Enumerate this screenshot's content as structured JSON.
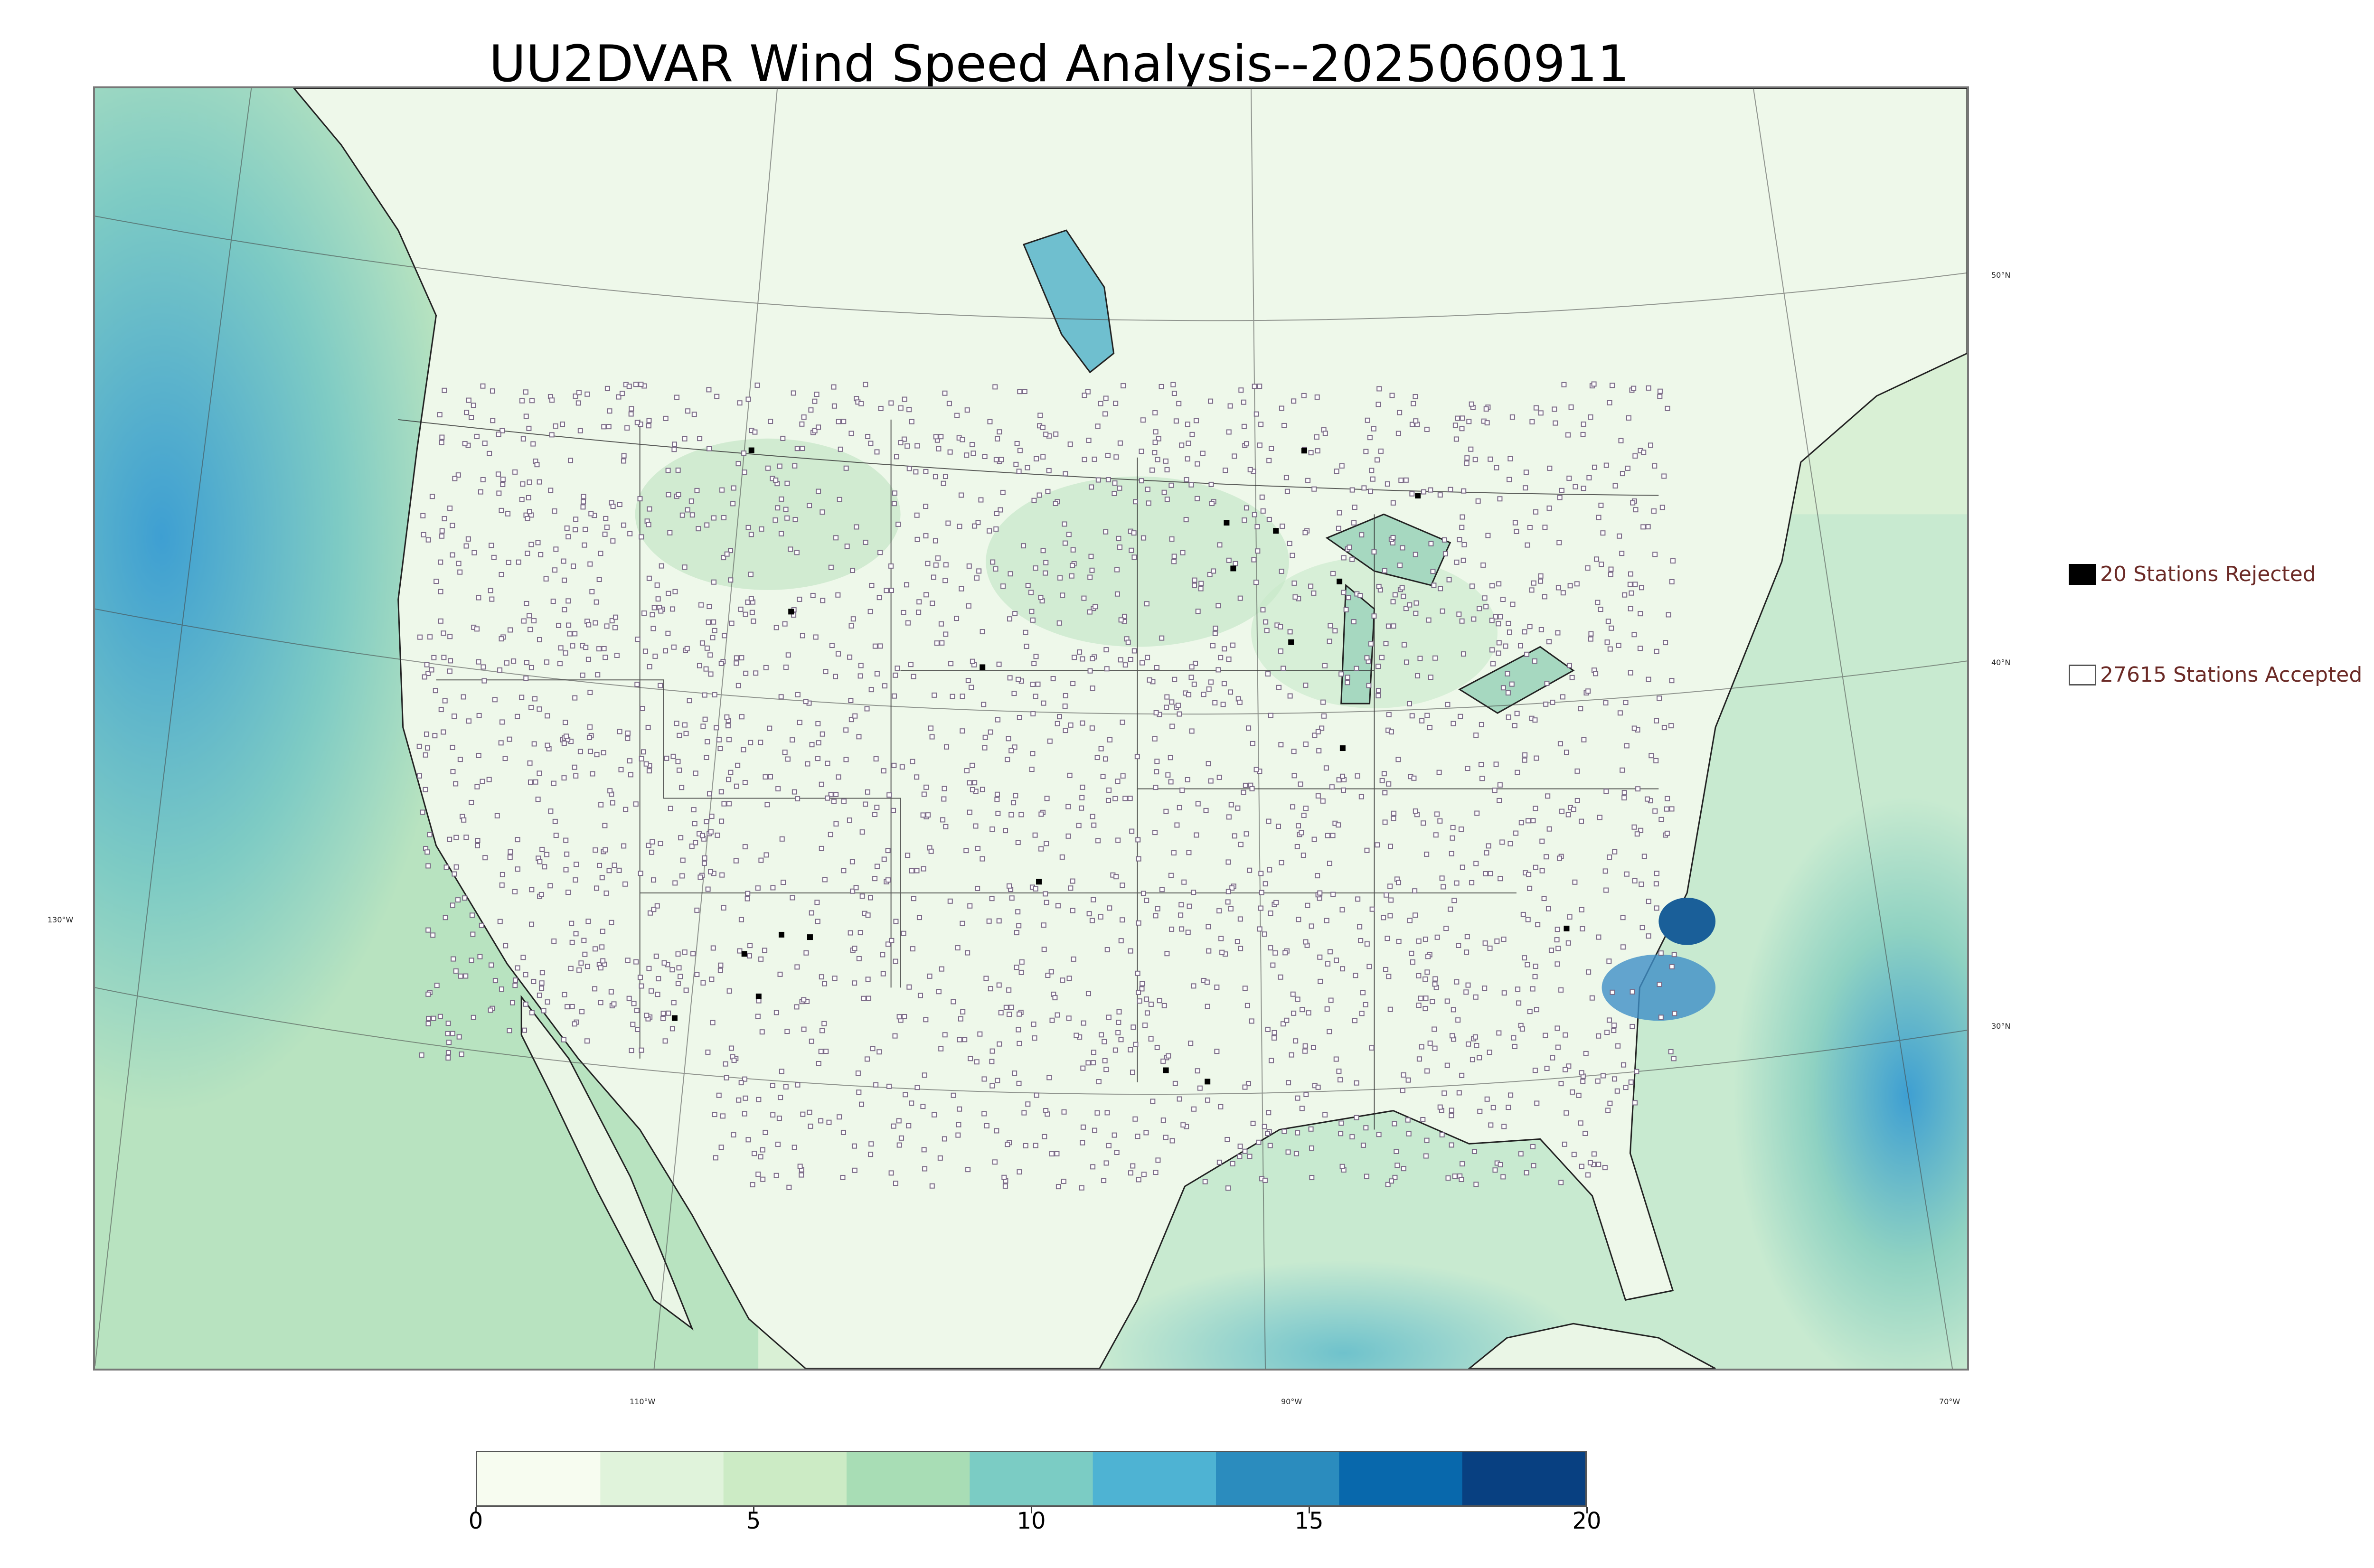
{
  "title": "UU2DVAR Wind Speed Analysis--2025060911",
  "map": {
    "projection": "lambert conformal",
    "coord_labels": {
      "lat_50": "50°N",
      "lat_40": "40°N",
      "lat_30": "30°N",
      "lon_130": "130°W",
      "lon_110": "110°W",
      "lon_90": "90°W",
      "lon_70": "70°W"
    },
    "colors": {
      "land_low_wind": "#f2faef",
      "mid_wind": "#a9dcb4",
      "ocean_wind": "#4fb0d6",
      "strong_wind": "#1a5f99",
      "borders": "#333333",
      "station_marker": "#7a6a86"
    }
  },
  "legend": {
    "rejected": {
      "label": "20 Stations Rejected",
      "count": 20,
      "marker_color": "#000000"
    },
    "accepted": {
      "label": "27615 Stations Accepted",
      "count": 27615,
      "marker_color": "#ffffff"
    }
  },
  "colorbar": {
    "ticks": [
      "0",
      "5",
      "10",
      "15",
      "20"
    ],
    "range": [
      0,
      20
    ],
    "colors": [
      "#f7fcf0",
      "#e0f3db",
      "#ccebc5",
      "#a8ddb5",
      "#7bccc4",
      "#4eb3d3",
      "#2b8cbe",
      "#0868ac",
      "#084081"
    ]
  }
}
